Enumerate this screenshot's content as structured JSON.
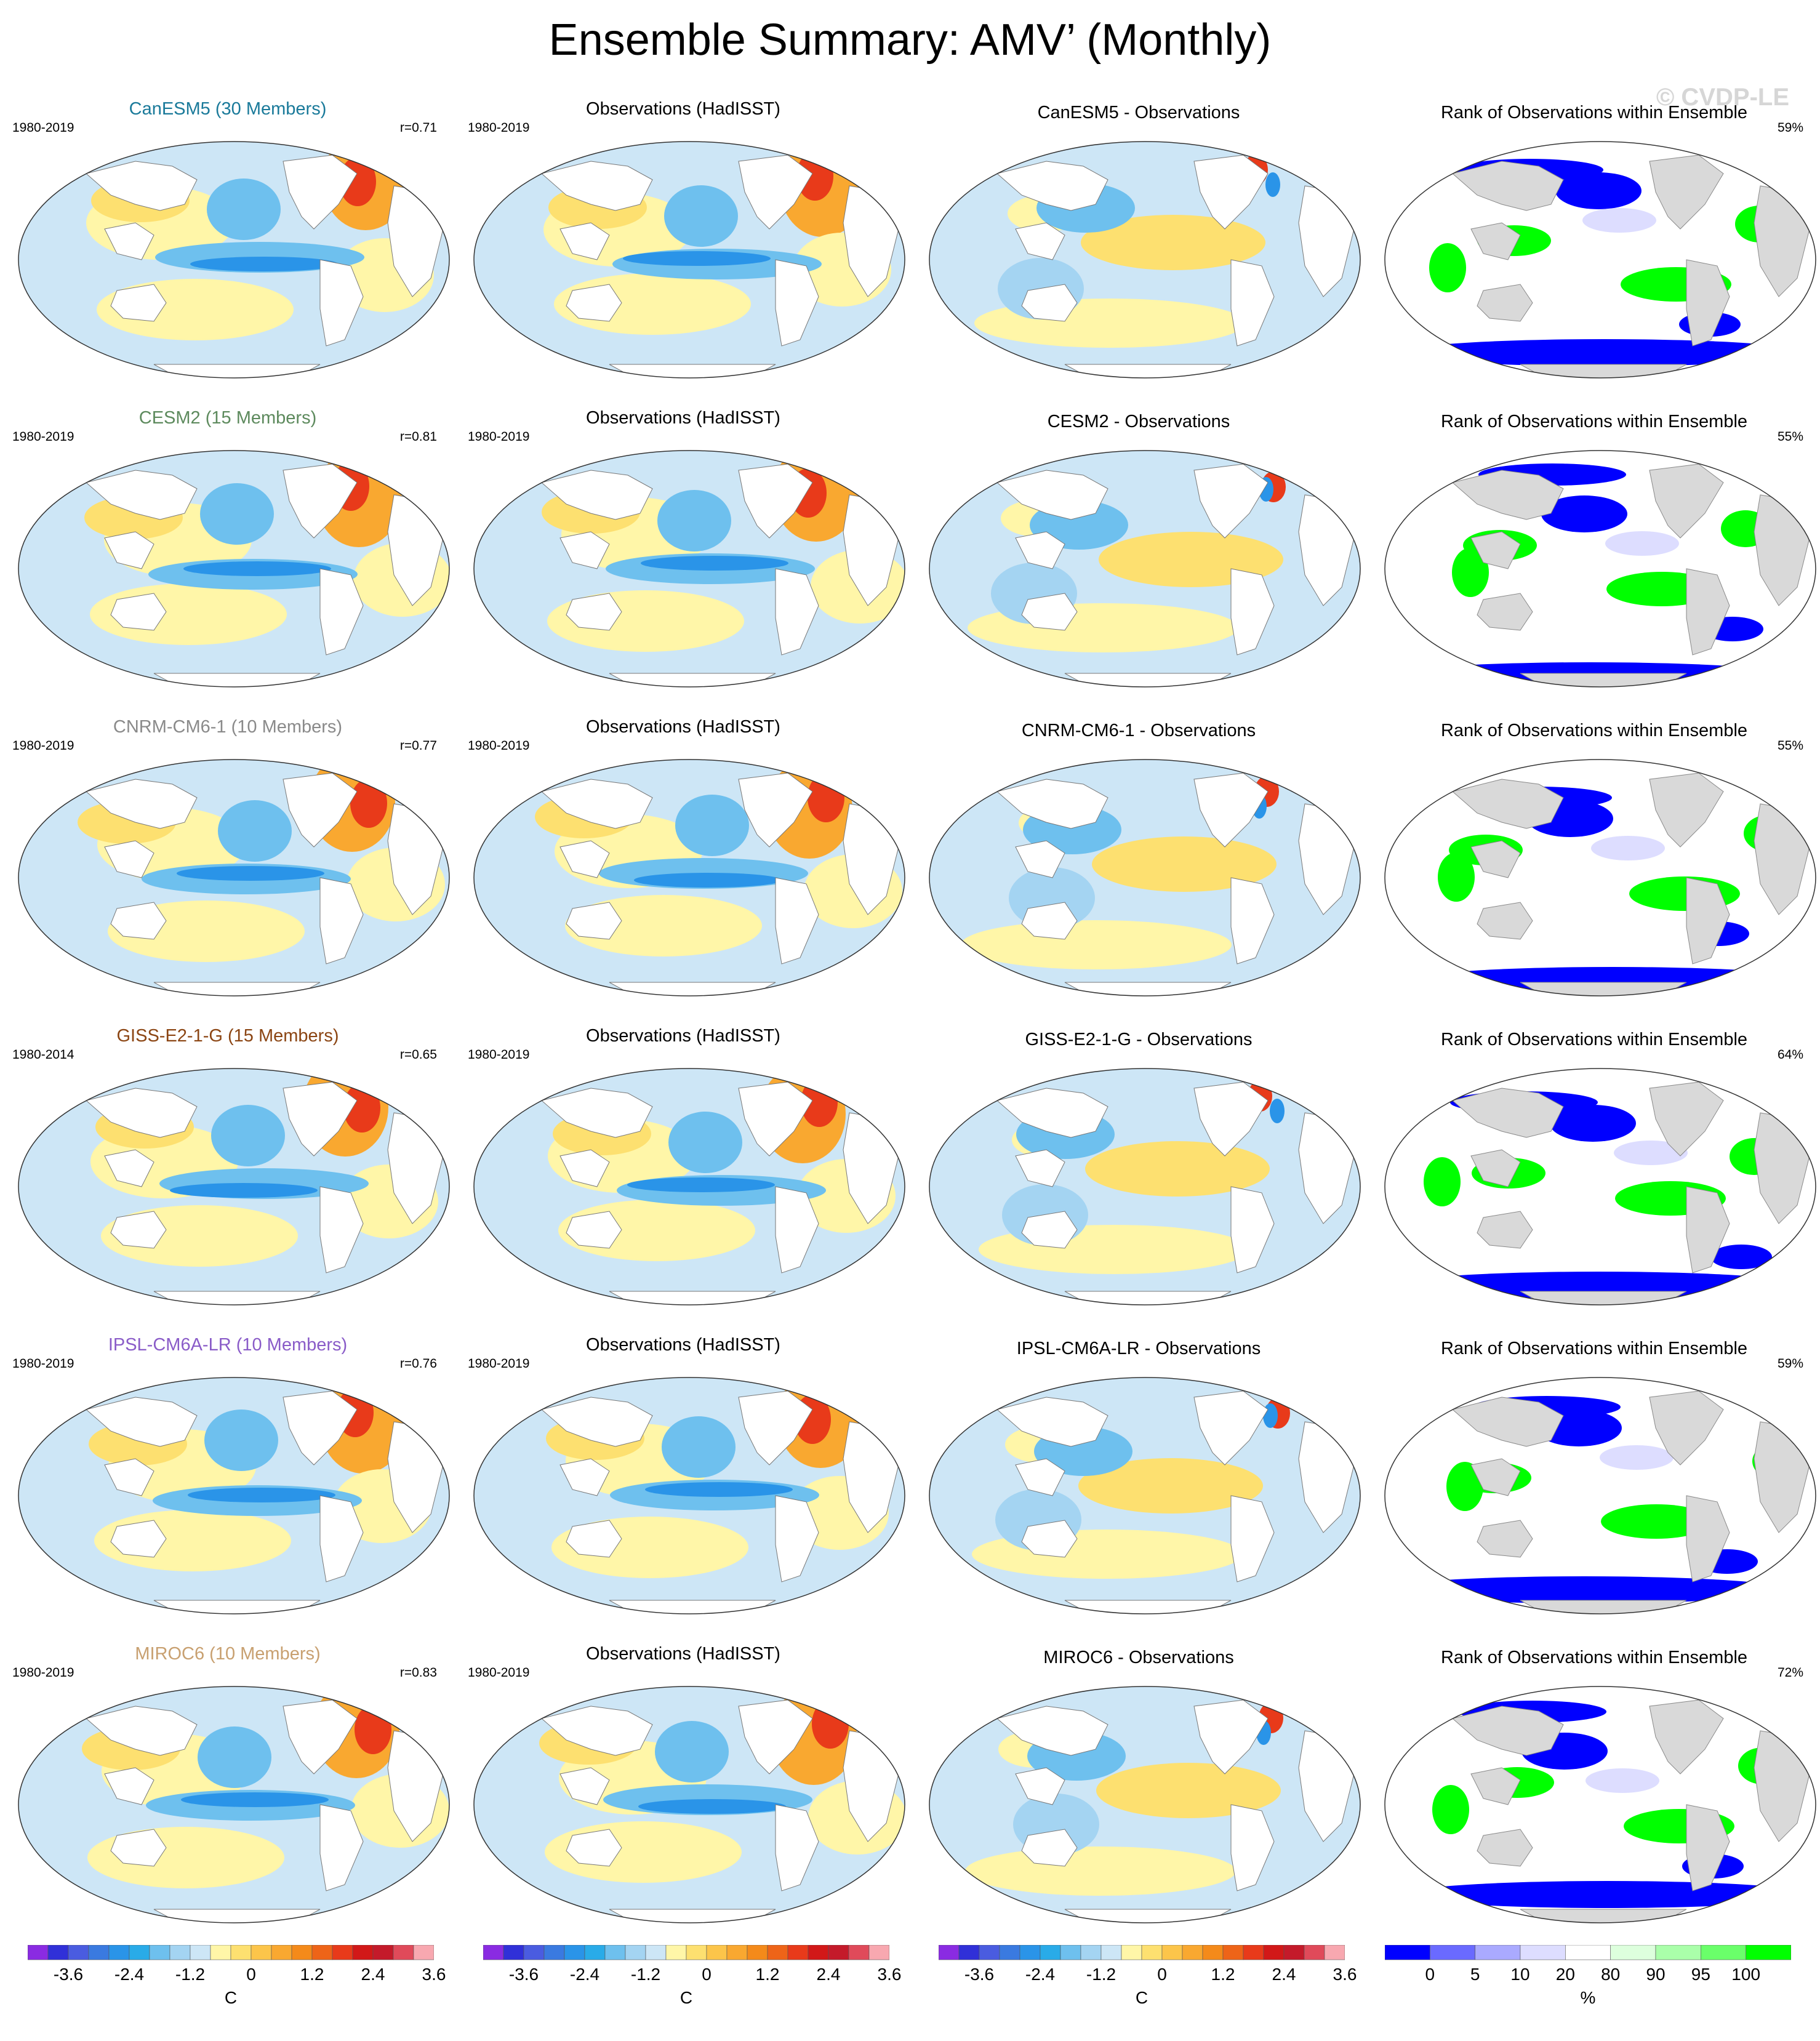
{
  "title": "Ensemble Summary: AMV’ (Monthly)",
  "watermark": "© CVDP-LE",
  "obs_title": "Observations (HadISST)",
  "rank_title": "Rank of Observations within Ensemble",
  "obs_period": "1980-2019",
  "rows": [
    {
      "model": "CanESM5 (30 Members)",
      "model_color": "#1a7a9a",
      "period": "1980-2019",
      "r": "r=0.71",
      "diff": "CanESM5 - Observations",
      "rank_pct": "59%"
    },
    {
      "model": "CESM2 (15 Members)",
      "model_color": "#5d8a5d",
      "period": "1980-2019",
      "r": "r=0.81",
      "diff": "CESM2 - Observations",
      "rank_pct": "55%"
    },
    {
      "model": "CNRM-CM6-1 (10 Members)",
      "model_color": "#8a8a8a",
      "period": "1980-2019",
      "r": "r=0.77",
      "diff": "CNRM-CM6-1 - Observations",
      "rank_pct": "55%"
    },
    {
      "model": "GISS-E2-1-G (15 Members)",
      "model_color": "#8b4513",
      "period": "1980-2014",
      "r": "r=0.65",
      "diff": "GISS-E2-1-G - Observations",
      "rank_pct": "64%"
    },
    {
      "model": "IPSL-CM6A-LR (10 Members)",
      "model_color": "#8a5cc8",
      "period": "1980-2019",
      "r": "r=0.76",
      "diff": "IPSL-CM6A-LR - Observations",
      "rank_pct": "59%"
    },
    {
      "model": "MIROC6 (10 Members)",
      "model_color": "#c8a070",
      "period": "1980-2019",
      "r": "r=0.83",
      "diff": "MIROC6 - Observations",
      "rank_pct": "72%"
    }
  ],
  "sst_colorbar": {
    "ticks": [
      "-3.6",
      "-2.4",
      "-1.2",
      "0",
      "1.2",
      "2.4",
      "3.6"
    ],
    "unit": "C",
    "colors": [
      "#8a2be2",
      "#3030d8",
      "#4a5ce0",
      "#3a7ae0",
      "#2a94e8",
      "#29abe8",
      "#6ec0ee",
      "#a4d4f2",
      "#cde6f6",
      "#fff6a8",
      "#fde070",
      "#fcc54a",
      "#f9a830",
      "#f48a1a",
      "#ee6418",
      "#e83a1a",
      "#d21818",
      "#c41a2a",
      "#e04a5a",
      "#f8a8b0"
    ]
  },
  "rank_colorbar": {
    "ticks": [
      "0",
      "5",
      "10",
      "20",
      "80",
      "90",
      "95",
      "100"
    ],
    "unit": "%",
    "colors": [
      "#0000ff",
      "#6a6aff",
      "#aaaaff",
      "#ddddff",
      "#ffffff",
      "#ddffdd",
      "#aaffaa",
      "#6aff6a",
      "#00ff00"
    ]
  }
}
